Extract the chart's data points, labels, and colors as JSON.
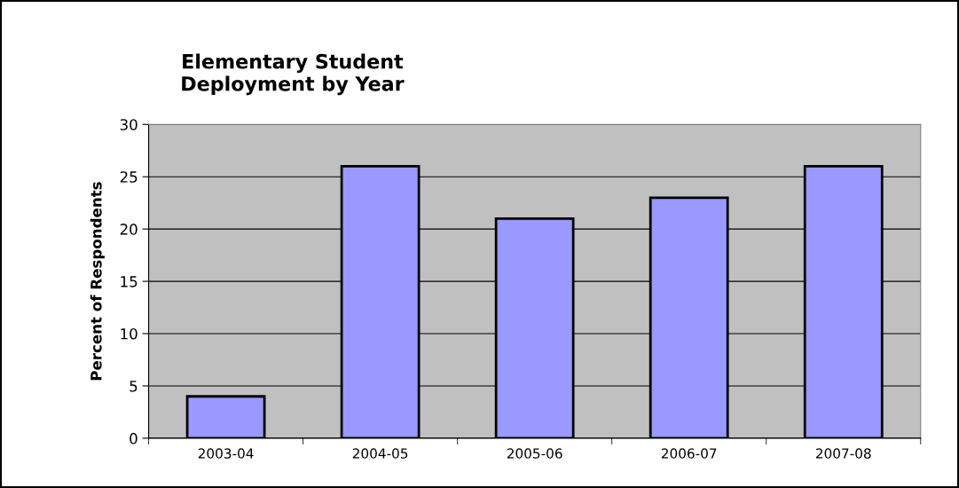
{
  "chart_data": {
    "type": "bar",
    "title": "Elementary Student\nDeployment by Year",
    "ylabel": "Percent of Respondents",
    "categories": [
      "2003-04",
      "2004-05",
      "2005-06",
      "2006-07",
      "2007-08"
    ],
    "values": [
      4,
      26,
      21,
      23,
      26
    ],
    "color": "#9999ff",
    "ylim": [
      0,
      30
    ],
    "yticks": [
      0,
      5,
      10,
      15,
      20,
      25,
      30
    ],
    "grid": "y"
  }
}
